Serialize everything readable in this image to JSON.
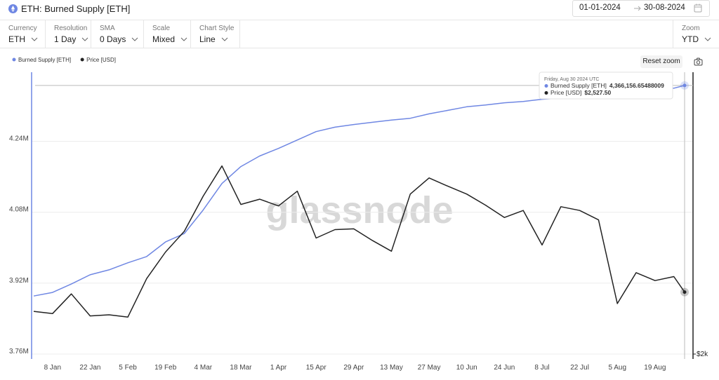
{
  "header": {
    "title": "ETH: Burned Supply [ETH]",
    "date_from": "01-01-2024",
    "date_to": "30-08-2024"
  },
  "controls": [
    {
      "label": "Currency",
      "value": "ETH"
    },
    {
      "label": "Resolution",
      "value": "1 Day"
    },
    {
      "label": "SMA",
      "value": "0 Days"
    },
    {
      "label": "Scale",
      "value": "Mixed"
    },
    {
      "label": "Chart Style",
      "value": "Line"
    }
  ],
  "zoom": {
    "label": "Zoom",
    "value": "YTD"
  },
  "reset_zoom": "Reset zoom",
  "watermark": "glassnode",
  "chart_data": {
    "type": "line",
    "x": [
      "2024-01-01",
      "2024-01-08",
      "2024-01-15",
      "2024-01-22",
      "2024-01-29",
      "2024-02-05",
      "2024-02-12",
      "2024-02-19",
      "2024-02-26",
      "2024-03-04",
      "2024-03-11",
      "2024-03-18",
      "2024-03-25",
      "2024-04-01",
      "2024-04-08",
      "2024-04-15",
      "2024-04-22",
      "2024-04-29",
      "2024-05-06",
      "2024-05-13",
      "2024-05-20",
      "2024-05-27",
      "2024-06-03",
      "2024-06-10",
      "2024-06-17",
      "2024-06-24",
      "2024-07-01",
      "2024-07-08",
      "2024-07-15",
      "2024-07-22",
      "2024-07-29",
      "2024-08-05",
      "2024-08-12",
      "2024-08-19",
      "2024-08-26",
      "2024-08-30"
    ],
    "xlim": [
      "2024-01-01",
      "2024-08-30"
    ],
    "xticks": [
      {
        "value": "2024-01-08",
        "label": "8 Jan"
      },
      {
        "value": "2024-01-22",
        "label": "22 Jan"
      },
      {
        "value": "2024-02-05",
        "label": "5 Feb"
      },
      {
        "value": "2024-02-19",
        "label": "19 Feb"
      },
      {
        "value": "2024-03-04",
        "label": "4 Mar"
      },
      {
        "value": "2024-03-18",
        "label": "18 Mar"
      },
      {
        "value": "2024-04-01",
        "label": "1 Apr"
      },
      {
        "value": "2024-04-15",
        "label": "15 Apr"
      },
      {
        "value": "2024-04-29",
        "label": "29 Apr"
      },
      {
        "value": "2024-05-13",
        "label": "13 May"
      },
      {
        "value": "2024-05-27",
        "label": "27 May"
      },
      {
        "value": "2024-06-10",
        "label": "10 Jun"
      },
      {
        "value": "2024-06-24",
        "label": "24 Jun"
      },
      {
        "value": "2024-07-08",
        "label": "8 Jul"
      },
      {
        "value": "2024-07-22",
        "label": "22 Jul"
      },
      {
        "value": "2024-08-05",
        "label": "5 Aug"
      },
      {
        "value": "2024-08-19",
        "label": "19 Aug"
      }
    ],
    "ylim": [
      3760000,
      4396000
    ],
    "yticks": [
      {
        "value": 3760000,
        "label": "3.76M"
      },
      {
        "value": 3920000,
        "label": "3.92M"
      },
      {
        "value": 4080000,
        "label": "4.08M"
      },
      {
        "value": 4240000,
        "label": "4.24M"
      }
    ],
    "y2lim": [
      2000,
      5800
    ],
    "y2log": true,
    "y2ticks": [
      {
        "value": 2000,
        "label": "$2k"
      }
    ],
    "grid": true,
    "series": [
      {
        "name": "Burned Supply [ETH]",
        "color": "#6f87e3",
        "values": [
          3891000,
          3899000,
          3918000,
          3939000,
          3950000,
          3966000,
          3980000,
          4013000,
          4032000,
          4085000,
          4145000,
          4183000,
          4207000,
          4224000,
          4243000,
          4262000,
          4272000,
          4278000,
          4283000,
          4288000,
          4292000,
          4302000,
          4310000,
          4318000,
          4322000,
          4327000,
          4330000,
          4335000,
          4338000,
          4341000,
          4344000,
          4349000,
          4353000,
          4357000,
          4360000,
          4366156.65488009
        ],
        "value_labels": [
          null,
          null,
          null,
          null,
          null,
          null,
          null,
          null,
          null,
          null,
          null,
          null,
          null,
          null,
          null,
          null,
          null,
          null,
          null,
          null,
          null,
          null,
          null,
          null,
          null,
          null,
          null,
          null,
          null,
          null,
          null,
          null,
          null,
          null,
          null,
          "4,366,156.65488009"
        ]
      },
      {
        "name": "Price [USD]",
        "color": "#222222",
        "axis": "y2",
        "values": [
          2350,
          2330,
          2510,
          2310,
          2320,
          2300,
          2660,
          2940,
          3180,
          3630,
          4070,
          3520,
          3590,
          3500,
          3700,
          3100,
          3200,
          3210,
          3070,
          2950,
          3660,
          3890,
          3770,
          3660,
          3510,
          3350,
          3440,
          3020,
          3490,
          3440,
          3320,
          2420,
          2720,
          2640,
          2680,
          2527.5
        ],
        "value_labels": [
          null,
          null,
          null,
          null,
          null,
          null,
          null,
          null,
          null,
          null,
          null,
          null,
          null,
          null,
          null,
          null,
          null,
          null,
          null,
          null,
          null,
          null,
          null,
          null,
          null,
          null,
          null,
          null,
          null,
          null,
          null,
          null,
          null,
          null,
          null,
          "$2,527.50"
        ]
      }
    ],
    "tooltip": {
      "date": "Friday, Aug 30 2024 UTC"
    }
  }
}
